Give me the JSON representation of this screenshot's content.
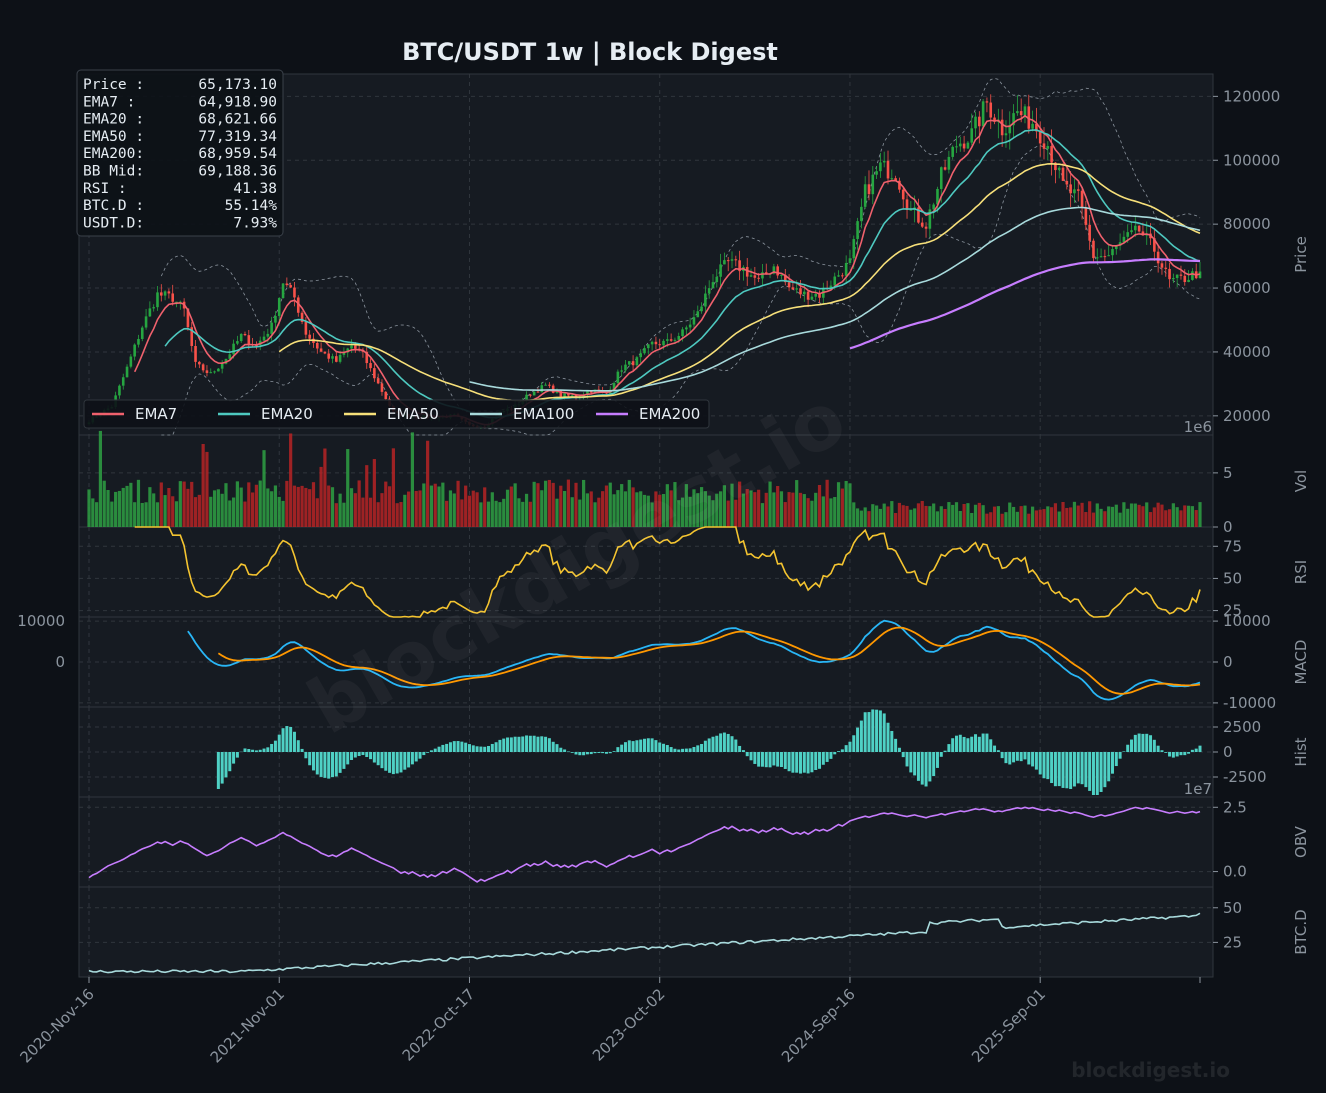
{
  "title": "BTC/USDT  1w  |  Block Digest",
  "watermark": "blockdigest.io",
  "footer": "blockdigest.io",
  "colors": {
    "background": "#0d1117",
    "panel": "#161b22",
    "grid": "#30363d",
    "up": "#26a641",
    "down": "#f85149",
    "ema7": "#f0616d",
    "ema20": "#4ec9c0",
    "ema50": "#f7e07a",
    "ema100": "#a8dadc",
    "ema200": "#c77dff",
    "rsi": "#f4c430",
    "macd": "#29b6f6",
    "signal": "#ff9800",
    "hist": "#4fd1c5",
    "obv": "#c77dff",
    "btcd": "#a8dadc",
    "bb": "#8b949e"
  },
  "info_box": {
    "rows": [
      {
        "label": "Price :",
        "value": "65,173.10"
      },
      {
        "label": "EMA7  :",
        "value": "64,918.90"
      },
      {
        "label": "EMA20 :",
        "value": "68,621.66"
      },
      {
        "label": "EMA50 :",
        "value": "77,319.34"
      },
      {
        "label": "EMA200:",
        "value": "68,959.54"
      },
      {
        "label": "BB Mid:",
        "value": "69,188.36"
      },
      {
        "label": "RSI   :",
        "value": "41.38"
      },
      {
        "label": "BTC.D :",
        "value": "55.14%"
      },
      {
        "label": "USDT.D:",
        "value": "7.93%"
      }
    ]
  },
  "legend": [
    {
      "name": "EMA7",
      "color": "#f0616d"
    },
    {
      "name": "EMA20",
      "color": "#4ec9c0"
    },
    {
      "name": "EMA50",
      "color": "#f7e07a"
    },
    {
      "name": "EMA100",
      "color": "#a8dadc"
    },
    {
      "name": "EMA200",
      "color": "#c77dff"
    }
  ],
  "x_tick_labels": [
    "2020-Nov-16",
    "2021-Nov-01",
    "2022-Oct-17",
    "2023-Oct-02",
    "2024-Sep-16",
    "2025-Sep-01"
  ],
  "chart_data": {
    "type": "line",
    "timeframe": "1w",
    "grid": true,
    "legend_placement": "inside-lower-left of price panel",
    "x_ticks": [
      "2020-Nov-16",
      "2021-Nov-01",
      "2022-Oct-17",
      "2023-Oct-02",
      "2024-Sep-16",
      "2025-Sep-01"
    ],
    "x_range": [
      "2020-Nov-16",
      "2026-Jan-05"
    ],
    "panels": [
      {
        "id": "price",
        "ylabel": "Price",
        "ylim": [
          14000,
          127000
        ],
        "yticks": [
          20000,
          40000,
          60000,
          80000,
          100000,
          120000
        ],
        "offset_label": "1e6",
        "price_anchors": [
          [
            0,
            18500
          ],
          [
            6,
            23000
          ],
          [
            10,
            35000
          ],
          [
            14,
            48000
          ],
          [
            18,
            58000
          ],
          [
            22,
            57000
          ],
          [
            25,
            53000
          ],
          [
            28,
            36000
          ],
          [
            32,
            33000
          ],
          [
            36,
            38000
          ],
          [
            40,
            45000
          ],
          [
            44,
            42000
          ],
          [
            48,
            48000
          ],
          [
            51,
            62000
          ],
          [
            54,
            57000
          ],
          [
            57,
            46000
          ],
          [
            61,
            40000
          ],
          [
            65,
            37000
          ],
          [
            69,
            42000
          ],
          [
            72,
            39000
          ],
          [
            76,
            30000
          ],
          [
            80,
            21000
          ],
          [
            84,
            20000
          ],
          [
            90,
            19500
          ],
          [
            96,
            20000
          ],
          [
            100,
            17000
          ],
          [
            104,
            16800
          ],
          [
            108,
            21000
          ],
          [
            112,
            23000
          ],
          [
            116,
            27000
          ],
          [
            120,
            29500
          ],
          [
            124,
            26500
          ],
          [
            128,
            26000
          ],
          [
            132,
            28000
          ],
          [
            136,
            27000
          ],
          [
            140,
            35000
          ],
          [
            144,
            37500
          ],
          [
            148,
            42500
          ],
          [
            152,
            43000
          ],
          [
            156,
            46000
          ],
          [
            160,
            52000
          ],
          [
            164,
            63000
          ],
          [
            168,
            68000
          ],
          [
            172,
            66000
          ],
          [
            176,
            62000
          ],
          [
            180,
            67000
          ],
          [
            184,
            60000
          ],
          [
            188,
            58000
          ],
          [
            192,
            58000
          ],
          [
            196,
            63000
          ],
          [
            200,
            68000
          ],
          [
            204,
            90000
          ],
          [
            208,
            98000
          ],
          [
            212,
            96000
          ],
          [
            216,
            84000
          ],
          [
            220,
            80000
          ],
          [
            224,
            95000
          ],
          [
            228,
            105000
          ],
          [
            232,
            108000
          ],
          [
            236,
            118000
          ],
          [
            240,
            110000
          ],
          [
            244,
            115000
          ],
          [
            248,
            112000
          ],
          [
            252,
            105000
          ],
          [
            256,
            92000
          ],
          [
            260,
            88000
          ],
          [
            264,
            70000
          ],
          [
            268,
            70000
          ],
          [
            272,
            75000
          ],
          [
            276,
            78000
          ],
          [
            280,
            72000
          ],
          [
            284,
            62000
          ],
          [
            288,
            63000
          ],
          [
            292,
            65173
          ]
        ],
        "indicators_last": {
          "EMA7": 64918.9,
          "EMA20": 68621.66,
          "EMA50": 77319.34,
          "EMA200": 68959.54,
          "BB_Mid": 69188.36
        },
        "series": [
          {
            "name": "EMA7",
            "period": 7
          },
          {
            "name": "EMA20",
            "period": 20
          },
          {
            "name": "EMA50",
            "period": 50
          },
          {
            "name": "EMA100",
            "period": 100
          },
          {
            "name": "EMA200",
            "period": 200
          }
        ]
      },
      {
        "id": "vol",
        "ylabel": "Vol",
        "ylim": [
          0,
          8.5
        ],
        "yticks": [
          0,
          5
        ]
      },
      {
        "id": "rsi",
        "ylabel": "RSI",
        "ylim": [
          20,
          90
        ],
        "yticks": [
          25,
          50,
          75
        ],
        "last": 41.38
      },
      {
        "id": "macd",
        "ylabel": "MACD",
        "ylim": [
          -11000,
          11000
        ],
        "yticks": [
          -10000,
          0,
          10000
        ],
        "left_yticks": [
          0,
          10000
        ]
      },
      {
        "id": "hist",
        "ylabel": "Hist",
        "ylim": [
          -4500,
          4500
        ],
        "yticks": [
          -2500,
          0,
          2500
        ],
        "offset_label": "1e7"
      },
      {
        "id": "obv",
        "ylabel": "OBV",
        "ylim": [
          -0.6,
          2.9
        ],
        "yticks": [
          0.0,
          2.5
        ]
      },
      {
        "id": "btcd",
        "ylabel": "BTC.D",
        "ylim": [
          0,
          65
        ],
        "yticks": [
          25,
          50
        ],
        "last": 55.14
      }
    ]
  }
}
